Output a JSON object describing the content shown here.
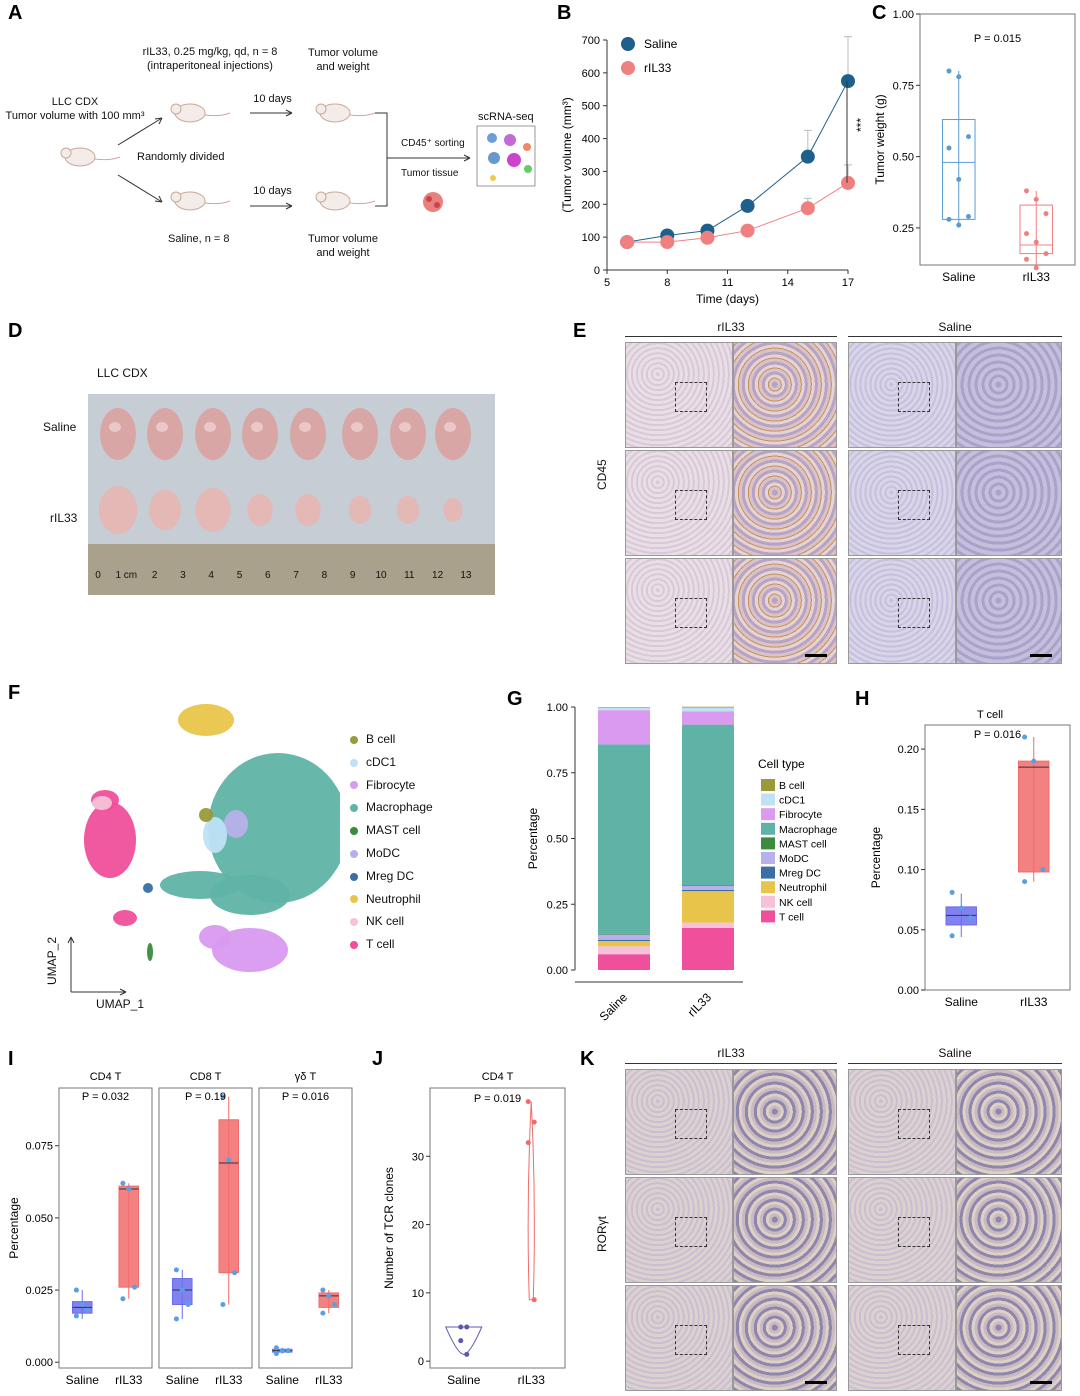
{
  "panel_labels": {
    "A": "A",
    "B": "B",
    "C": "C",
    "D": "D",
    "E": "E",
    "F": "F",
    "G": "G",
    "H": "H",
    "I": "I",
    "J": "J",
    "K": "K"
  },
  "panelA": {
    "cdx_line1": "LLC CDX",
    "cdx_line2": "Tumor volume with 100 mm³",
    "treat_line1": "rIL33, 0.25 mg/kg, qd, n = 8",
    "treat_line2": "(intraperitoneal injections)",
    "randomly": "Randomly divided",
    "saline": "Saline, n = 8",
    "days_top": "10 days",
    "days_bottom": "10 days",
    "tv_top_1": "Tumor volume",
    "tv_top_2": "and weight",
    "tv_bot_1": "Tumor volume",
    "tv_bot_2": "and weight",
    "sorting": "CD45⁺ sorting",
    "tissue": "Tumor tissue",
    "scrna": "scRNA-seq"
  },
  "panelD": {
    "title": "LLC CDX",
    "row_saline": "Saline",
    "row_ril33": "rIL33",
    "ruler": [
      "0",
      "1 cm",
      "2",
      "3",
      "4",
      "5",
      "6",
      "7",
      "8",
      "9",
      "10",
      "11",
      "12",
      "13"
    ]
  },
  "panelE": {
    "col1": "rIL33",
    "col2": "Saline",
    "row": "CD45"
  },
  "panelK": {
    "col1": "rIL33",
    "col2": "Saline",
    "row": "RORγt"
  },
  "colors": {
    "saline_blue": "#1f5f8b",
    "ril33_salmon": "#f08080",
    "teal": "#5fb3a6"
  },
  "panelF": {
    "axis_x": "UMAP_1",
    "axis_y": "UMAP_2",
    "legend": [
      {
        "label": "B cell",
        "color": "#9a9a3a"
      },
      {
        "label": "cDC1",
        "color": "#bfe0f5"
      },
      {
        "label": "Fibrocyte",
        "color": "#d99af0"
      },
      {
        "label": "Macrophage",
        "color": "#5fb3a6"
      },
      {
        "label": "MAST cell",
        "color": "#3c8a3c"
      },
      {
        "label": "MoDC",
        "color": "#b8b0ea"
      },
      {
        "label": "Mreg DC",
        "color": "#3a6ea5"
      },
      {
        "label": "Neutrophil",
        "color": "#e8c54a"
      },
      {
        "label": "NK cell",
        "color": "#f7c1d9"
      },
      {
        "label": "T cell",
        "color": "#ef4f9b"
      }
    ]
  },
  "chart_data": [
    {
      "id": "B",
      "type": "line",
      "title": "",
      "xlabel": "Time (days)",
      "ylabel": "(Tumor volume (mm³)",
      "xlim": [
        5,
        17
      ],
      "ylim": [
        0,
        700
      ],
      "xticks": [
        5,
        8,
        11,
        14,
        17
      ],
      "yticks": [
        0,
        100,
        200,
        300,
        400,
        500,
        600,
        700
      ],
      "series": [
        {
          "name": "Saline",
          "color": "#1f5f8b",
          "x": [
            6,
            8,
            10,
            12,
            15,
            17
          ],
          "y": [
            85,
            105,
            120,
            195,
            345,
            575
          ],
          "err": [
            5,
            8,
            10,
            15,
            80,
            135
          ]
        },
        {
          "name": "rIL33",
          "color": "#f08080",
          "x": [
            6,
            8,
            10,
            12,
            15,
            17
          ],
          "y": [
            85,
            85,
            98,
            120,
            188,
            265
          ],
          "err": [
            5,
            6,
            8,
            10,
            30,
            55
          ]
        }
      ],
      "annotation": "***"
    },
    {
      "id": "C",
      "type": "box",
      "title": "",
      "ylabel": "Tumor weight (g)",
      "ylim": [
        0.12,
        1.0
      ],
      "yticks": [
        "0.25",
        "0.50",
        "0.75",
        "1.00"
      ],
      "pvalue": "P = 0.015",
      "categories": [
        "Saline",
        "rIL33"
      ],
      "boxes": [
        {
          "name": "Saline",
          "color": "#5b9bd5",
          "q1": 0.28,
          "median": 0.48,
          "q3": 0.63,
          "min": 0.26,
          "max": 0.8,
          "points": [
            0.8,
            0.78,
            0.57,
            0.53,
            0.42,
            0.29,
            0.28,
            0.26
          ]
        },
        {
          "name": "rIL33",
          "color": "#f08080",
          "q1": 0.16,
          "median": 0.19,
          "q3": 0.33,
          "min": 0.11,
          "max": 0.38,
          "points": [
            0.38,
            0.35,
            0.3,
            0.23,
            0.2,
            0.16,
            0.14,
            0.11
          ]
        }
      ]
    },
    {
      "id": "G",
      "type": "bar",
      "title": "",
      "ylabel": "Percentage",
      "ylim": [
        0,
        1
      ],
      "yticks": [
        "0.00",
        "0.25",
        "0.50",
        "0.75",
        "1.00"
      ],
      "categories": [
        "Saline",
        "rIL33"
      ],
      "legend_title": "Cell type",
      "series": [
        {
          "name": "T cell",
          "color": "#ef4f9b",
          "values": [
            0.06,
            0.16
          ]
        },
        {
          "name": "NK cell",
          "color": "#f7c1d9",
          "values": [
            0.03,
            0.02
          ]
        },
        {
          "name": "Neutrophil",
          "color": "#e8c54a",
          "values": [
            0.02,
            0.12
          ]
        },
        {
          "name": "Mreg DC",
          "color": "#3a6ea5",
          "values": [
            0.005,
            0.005
          ]
        },
        {
          "name": "MoDC",
          "color": "#b8b0ea",
          "values": [
            0.02,
            0.015
          ]
        },
        {
          "name": "MAST cell",
          "color": "#3c8a3c",
          "values": [
            0.003,
            0.003
          ]
        },
        {
          "name": "Macrophage",
          "color": "#5fb3a6",
          "values": [
            0.72,
            0.61
          ]
        },
        {
          "name": "Fibrocyte",
          "color": "#d99af0",
          "values": [
            0.13,
            0.05
          ]
        },
        {
          "name": "cDC1",
          "color": "#bfe0f5",
          "values": [
            0.01,
            0.015
          ]
        },
        {
          "name": "B cell",
          "color": "#9a9a3a",
          "values": [
            0.002,
            0.003
          ]
        }
      ]
    },
    {
      "id": "H",
      "type": "box",
      "title": "T cell",
      "ylabel": "Percentage",
      "ylim": [
        0,
        0.22
      ],
      "yticks": [
        "0.00",
        "0.05",
        "0.10",
        "0.15",
        "0.20"
      ],
      "pvalue": "P = 0.016",
      "categories": [
        "Saline",
        "rIL33"
      ],
      "boxes": [
        {
          "name": "Saline",
          "color": "#6a6cf0",
          "q1": 0.054,
          "median": 0.062,
          "q3": 0.069,
          "min": 0.044,
          "max": 0.08,
          "points": [
            0.081,
            0.068,
            0.06,
            0.045
          ]
        },
        {
          "name": "rIL33",
          "color": "#f26b6b",
          "q1": 0.098,
          "median": 0.185,
          "q3": 0.19,
          "min": 0.09,
          "max": 0.21,
          "points": [
            0.21,
            0.19,
            0.1,
            0.09
          ]
        }
      ]
    },
    {
      "id": "I",
      "type": "box",
      "title": "",
      "ylabel": "Percentage",
      "ylim": [
        -0.002,
        0.095
      ],
      "yticks": [
        "0.000",
        "0.025",
        "0.050",
        "0.075"
      ],
      "facets": [
        {
          "title": "CD4 T",
          "pvalue": "P = 0.032",
          "categories": [
            "Saline",
            "rIL33"
          ],
          "boxes": [
            {
              "name": "Saline",
              "color": "#6a6cf0",
              "q1": 0.017,
              "median": 0.019,
              "q3": 0.021,
              "min": 0.015,
              "max": 0.025,
              "points": [
                0.025,
                0.02,
                0.018,
                0.016
              ]
            },
            {
              "name": "rIL33",
              "color": "#f26b6b",
              "q1": 0.026,
              "median": 0.06,
              "q3": 0.061,
              "min": 0.022,
              "max": 0.062,
              "points": [
                0.062,
                0.06,
                0.026,
                0.022
              ]
            }
          ]
        },
        {
          "title": "CD8 T",
          "pvalue": "P = 0.19",
          "categories": [
            "Saline",
            "rIL33"
          ],
          "boxes": [
            {
              "name": "Saline",
              "color": "#6a6cf0",
              "q1": 0.02,
              "median": 0.025,
              "q3": 0.029,
              "min": 0.015,
              "max": 0.032,
              "points": [
                0.032,
                0.025,
                0.02,
                0.015
              ]
            },
            {
              "name": "rIL33",
              "color": "#f26b6b",
              "q1": 0.031,
              "median": 0.069,
              "q3": 0.084,
              "min": 0.02,
              "max": 0.092,
              "points": [
                0.092,
                0.07,
                0.031,
                0.02
              ]
            }
          ]
        },
        {
          "title": "γδ T",
          "pvalue": "P = 0.016",
          "categories": [
            "Saline",
            "rIL33"
          ],
          "boxes": [
            {
              "name": "Saline",
              "color": "#6a6cf0",
              "q1": 0.0035,
              "median": 0.004,
              "q3": 0.0045,
              "min": 0.003,
              "max": 0.005,
              "points": [
                0.005,
                0.004,
                0.004,
                0.003
              ]
            },
            {
              "name": "rIL33",
              "color": "#f26b6b",
              "q1": 0.019,
              "median": 0.023,
              "q3": 0.024,
              "min": 0.017,
              "max": 0.025,
              "points": [
                0.025,
                0.023,
                0.02,
                0.017
              ]
            }
          ]
        }
      ]
    },
    {
      "id": "J",
      "type": "violin",
      "title": "CD4 T",
      "ylabel": "Number of TCR clones",
      "ylim": [
        -1,
        40
      ],
      "yticks": [
        "0",
        "10",
        "20",
        "30"
      ],
      "pvalue": "P = 0.019",
      "categories": [
        "Saline",
        "rIL33"
      ],
      "groups": [
        {
          "name": "Saline",
          "color": "#5b57b0",
          "points": [
            5,
            5,
            3,
            1
          ]
        },
        {
          "name": "rIL33",
          "color": "#f26b6b",
          "points": [
            38,
            35,
            32,
            9
          ]
        }
      ]
    }
  ]
}
